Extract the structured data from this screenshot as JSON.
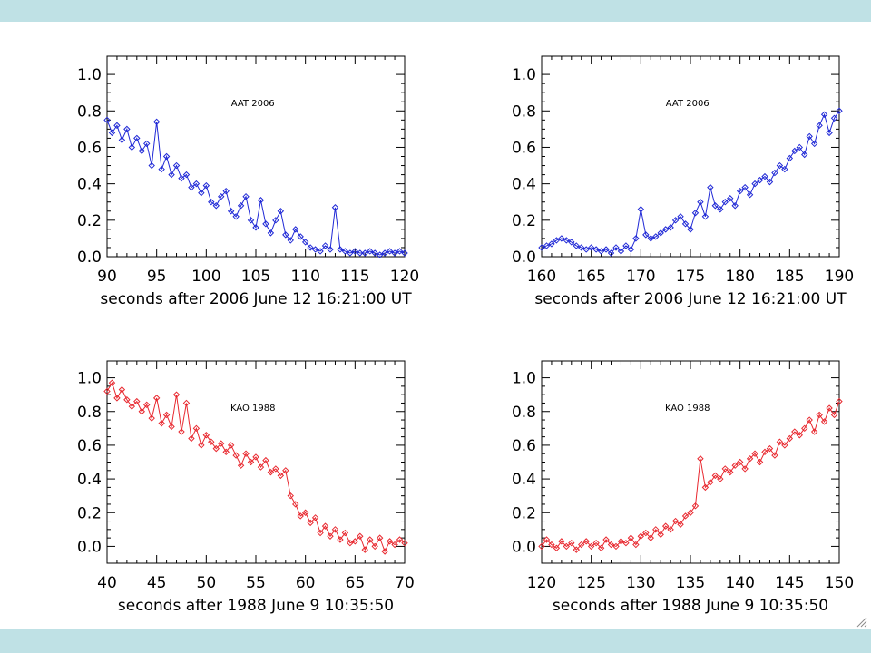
{
  "window": {
    "top_bar_color": "#bfe1e5",
    "bottom_bar_color": "#bfe1e5"
  },
  "chart_data": [
    {
      "type": "line",
      "annotation": "AAT 2006",
      "xlabel": "seconds after 2006 June 12 16:21:00 UT",
      "xlim": [
        90,
        120
      ],
      "ylim": [
        0.0,
        1.1
      ],
      "xticks": [
        90,
        95,
        100,
        105,
        110,
        115,
        120
      ],
      "yticks": [
        0.0,
        0.2,
        0.4,
        0.6,
        0.8,
        1.0
      ],
      "ytick_labels": [
        "0.0",
        "0.2",
        "0.4",
        "0.6",
        "0.8",
        "1.0"
      ],
      "color": "#1f28d6",
      "marker": "diamond",
      "x": [
        90,
        90.5,
        91,
        91.5,
        92,
        92.5,
        93,
        93.5,
        94,
        94.5,
        95,
        95.5,
        96,
        96.5,
        97,
        97.5,
        98,
        98.5,
        99,
        99.5,
        100,
        100.5,
        101,
        101.5,
        102,
        102.5,
        103,
        103.5,
        104,
        104.5,
        105,
        105.5,
        106,
        106.5,
        107,
        107.5,
        108,
        108.5,
        109,
        109.5,
        110,
        110.5,
        111,
        111.5,
        112,
        112.5,
        113,
        113.5,
        114,
        114.5,
        115,
        115.5,
        116,
        116.5,
        117,
        117.5,
        118,
        118.5,
        119,
        119.5,
        120
      ],
      "y": [
        0.75,
        0.68,
        0.72,
        0.64,
        0.7,
        0.6,
        0.65,
        0.58,
        0.62,
        0.5,
        0.74,
        0.48,
        0.55,
        0.45,
        0.5,
        0.43,
        0.45,
        0.38,
        0.4,
        0.35,
        0.39,
        0.3,
        0.28,
        0.33,
        0.36,
        0.25,
        0.22,
        0.28,
        0.33,
        0.2,
        0.16,
        0.31,
        0.18,
        0.13,
        0.2,
        0.25,
        0.12,
        0.09,
        0.15,
        0.11,
        0.08,
        0.05,
        0.04,
        0.03,
        0.06,
        0.04,
        0.27,
        0.04,
        0.03,
        0.02,
        0.03,
        0.02,
        0.02,
        0.03,
        0.02,
        0.01,
        0.02,
        0.03,
        0.02,
        0.03,
        0.02
      ]
    },
    {
      "type": "line",
      "annotation": "AAT 2006",
      "xlabel": "seconds after 2006 June 12 16:21:00 UT",
      "xlim": [
        160,
        190
      ],
      "ylim": [
        0.0,
        1.1
      ],
      "xticks": [
        160,
        165,
        170,
        175,
        180,
        185,
        190
      ],
      "yticks": [
        0.0,
        0.2,
        0.4,
        0.6,
        0.8,
        1.0
      ],
      "ytick_labels": [
        "0.0",
        "0.2",
        "0.4",
        "0.6",
        "0.8",
        "1.0"
      ],
      "color": "#1f28d6",
      "marker": "diamond",
      "x": [
        160,
        160.5,
        161,
        161.5,
        162,
        162.5,
        163,
        163.5,
        164,
        164.5,
        165,
        165.5,
        166,
        166.5,
        167,
        167.5,
        168,
        168.5,
        169,
        169.5,
        170,
        170.5,
        171,
        171.5,
        172,
        172.5,
        173,
        173.5,
        174,
        174.5,
        175,
        175.5,
        176,
        176.5,
        177,
        177.5,
        178,
        178.5,
        179,
        179.5,
        180,
        180.5,
        181,
        181.5,
        182,
        182.5,
        183,
        183.5,
        184,
        184.5,
        185,
        185.5,
        186,
        186.5,
        187,
        187.5,
        188,
        188.5,
        189,
        189.5,
        190
      ],
      "y": [
        0.05,
        0.06,
        0.07,
        0.09,
        0.1,
        0.09,
        0.08,
        0.06,
        0.05,
        0.04,
        0.05,
        0.04,
        0.03,
        0.04,
        0.02,
        0.05,
        0.03,
        0.06,
        0.04,
        0.1,
        0.26,
        0.12,
        0.1,
        0.11,
        0.13,
        0.15,
        0.16,
        0.2,
        0.22,
        0.18,
        0.15,
        0.24,
        0.3,
        0.22,
        0.38,
        0.28,
        0.26,
        0.3,
        0.32,
        0.28,
        0.36,
        0.38,
        0.34,
        0.4,
        0.42,
        0.44,
        0.41,
        0.46,
        0.5,
        0.48,
        0.54,
        0.58,
        0.6,
        0.56,
        0.66,
        0.62,
        0.72,
        0.78,
        0.68,
        0.76,
        0.8
      ]
    },
    {
      "type": "line",
      "annotation": "KAO 1988",
      "xlabel": "seconds after 1988 June 9 10:35:50",
      "xlim": [
        40,
        70
      ],
      "ylim": [
        -0.1,
        1.1
      ],
      "xticks": [
        40,
        45,
        50,
        55,
        60,
        65,
        70
      ],
      "yticks": [
        0.0,
        0.2,
        0.4,
        0.6,
        0.8,
        1.0
      ],
      "ytick_labels": [
        "0.0",
        "0.2",
        "0.4",
        "0.6",
        "0.8",
        "1.0"
      ],
      "color": "#e8282f",
      "marker": "diamond",
      "x": [
        40,
        40.5,
        41,
        41.5,
        42,
        42.5,
        43,
        43.5,
        44,
        44.5,
        45,
        45.5,
        46,
        46.5,
        47,
        47.5,
        48,
        48.5,
        49,
        49.5,
        50,
        50.5,
        51,
        51.5,
        52,
        52.5,
        53,
        53.5,
        54,
        54.5,
        55,
        55.5,
        56,
        56.5,
        57,
        57.5,
        58,
        58.5,
        59,
        59.5,
        60,
        60.5,
        61,
        61.5,
        62,
        62.5,
        63,
        63.5,
        64,
        64.5,
        65,
        65.5,
        66,
        66.5,
        67,
        67.5,
        68,
        68.5,
        69,
        69.5,
        70
      ],
      "y": [
        0.92,
        0.97,
        0.88,
        0.93,
        0.87,
        0.83,
        0.86,
        0.8,
        0.84,
        0.76,
        0.88,
        0.73,
        0.78,
        0.71,
        0.9,
        0.68,
        0.85,
        0.64,
        0.7,
        0.6,
        0.66,
        0.62,
        0.58,
        0.61,
        0.56,
        0.6,
        0.54,
        0.48,
        0.55,
        0.5,
        0.53,
        0.47,
        0.51,
        0.44,
        0.46,
        0.42,
        0.45,
        0.3,
        0.25,
        0.18,
        0.2,
        0.14,
        0.17,
        0.08,
        0.12,
        0.06,
        0.1,
        0.04,
        0.08,
        0.02,
        0.03,
        0.06,
        -0.02,
        0.04,
        0.0,
        0.05,
        -0.03,
        0.03,
        0.01,
        0.04,
        0.02
      ]
    },
    {
      "type": "line",
      "annotation": "KAO 1988",
      "xlabel": "seconds after 1988 June 9 10:35:50",
      "xlim": [
        120,
        150
      ],
      "ylim": [
        -0.1,
        1.1
      ],
      "xticks": [
        120,
        125,
        130,
        135,
        140,
        145,
        150
      ],
      "yticks": [
        0.0,
        0.2,
        0.4,
        0.6,
        0.8,
        1.0
      ],
      "ytick_labels": [
        "0.0",
        "0.2",
        "0.4",
        "0.6",
        "0.8",
        "1.0"
      ],
      "color": "#e8282f",
      "marker": "diamond",
      "x": [
        120,
        120.5,
        121,
        121.5,
        122,
        122.5,
        123,
        123.5,
        124,
        124.5,
        125,
        125.5,
        126,
        126.5,
        127,
        127.5,
        128,
        128.5,
        129,
        129.5,
        130,
        130.5,
        131,
        131.5,
        132,
        132.5,
        133,
        133.5,
        134,
        134.5,
        135,
        135.5,
        136,
        136.5,
        137,
        137.5,
        138,
        138.5,
        139,
        139.5,
        140,
        140.5,
        141,
        141.5,
        142,
        142.5,
        143,
        143.5,
        144,
        144.5,
        145,
        145.5,
        146,
        146.5,
        147,
        147.5,
        148,
        148.5,
        149,
        149.5,
        150
      ],
      "y": [
        0.0,
        0.04,
        0.01,
        -0.01,
        0.03,
        0.0,
        0.02,
        -0.02,
        0.01,
        0.03,
        0.0,
        0.02,
        -0.01,
        0.04,
        0.01,
        0.0,
        0.03,
        0.02,
        0.05,
        0.01,
        0.06,
        0.08,
        0.05,
        0.1,
        0.07,
        0.12,
        0.1,
        0.15,
        0.13,
        0.18,
        0.2,
        0.24,
        0.52,
        0.35,
        0.38,
        0.42,
        0.4,
        0.46,
        0.44,
        0.48,
        0.5,
        0.46,
        0.52,
        0.55,
        0.5,
        0.56,
        0.58,
        0.54,
        0.62,
        0.6,
        0.64,
        0.68,
        0.66,
        0.7,
        0.75,
        0.68,
        0.78,
        0.74,
        0.82,
        0.78,
        0.86
      ]
    }
  ]
}
